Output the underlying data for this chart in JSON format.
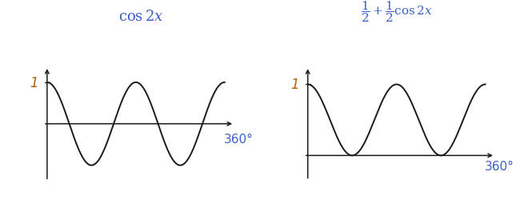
{
  "fig_width": 6.65,
  "fig_height": 2.51,
  "dpi": 100,
  "background_color": "#ffffff",
  "curve_color": "#1a1a1a",
  "curve_linewidth": 1.4,
  "label_1_color": "#b8600a",
  "label_360_color": "#3a5fcd",
  "title_color": "#3a5fcd",
  "axis_color": "#1a1a1a",
  "title1": "$\\cos 2x$",
  "title2": "$\\dfrac{1}{2} + \\dfrac{1}{2}\\cos 2x$",
  "title_fontsize": 13,
  "title2_fontsize": 11,
  "label_1_fontsize": 12,
  "label_360_fontsize": 11
}
